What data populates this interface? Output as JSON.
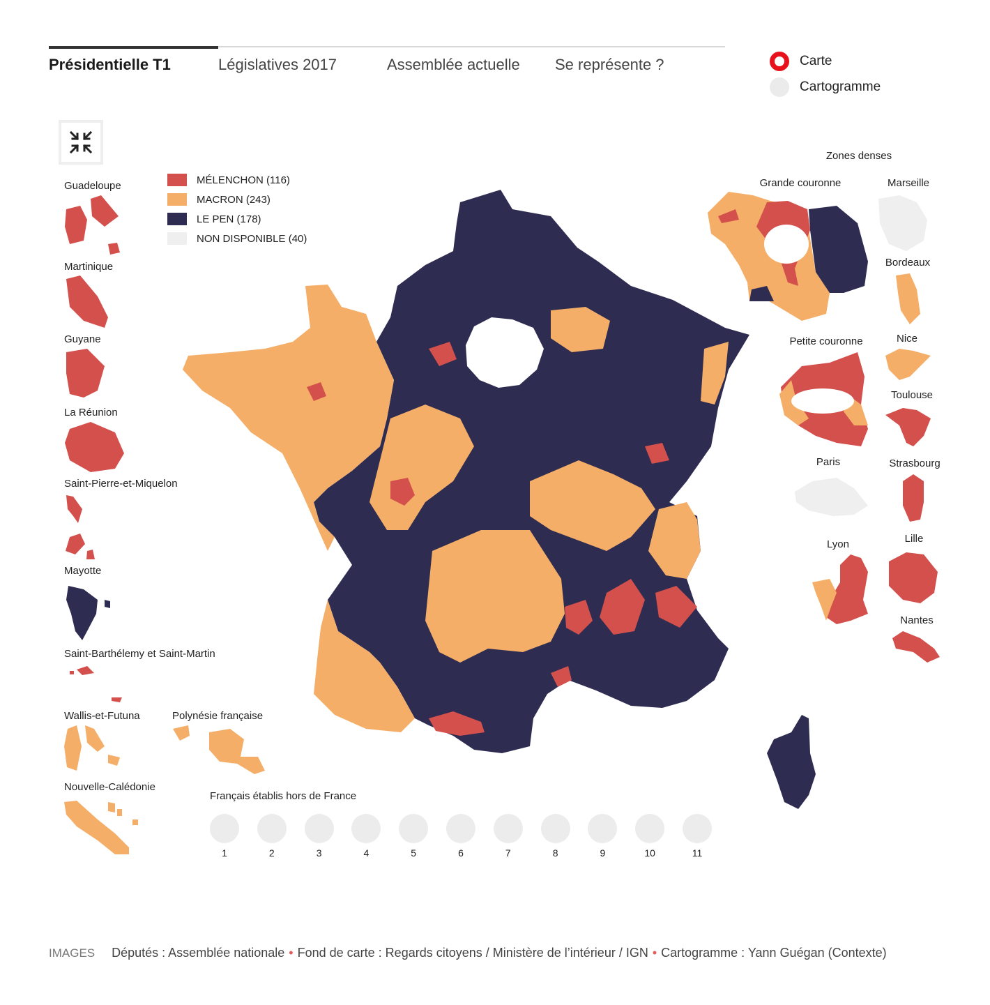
{
  "tabs": [
    {
      "label": "Présidentielle T1",
      "active": true
    },
    {
      "label": "Législatives 2017",
      "active": false
    },
    {
      "label": "Assemblée actuelle",
      "active": false
    },
    {
      "label": "Se représente ?",
      "active": false
    }
  ],
  "modes": [
    {
      "label": "Carte",
      "selected": true
    },
    {
      "label": "Cartogramme",
      "selected": false
    }
  ],
  "legend": [
    {
      "label": "MÉLENCHON (116)",
      "color": "#d4504c"
    },
    {
      "label": "MACRON (243)",
      "color": "#f4ae67"
    },
    {
      "label": "LE PEN (178)",
      "color": "#2f2c52"
    },
    {
      "label": "NON DISPONIBLE (40)",
      "color": "#efefef"
    }
  ],
  "overseas": {
    "guadeloupe": "Guadeloupe",
    "martinique": "Martinique",
    "guyane": "Guyane",
    "reunion": "La Réunion",
    "spm": "Saint-Pierre-et-Miquelon",
    "mayotte": "Mayotte",
    "stbarth": "Saint-Barthélemy et Saint-Martin",
    "wallis": "Wallis-et-Futuna",
    "polynesie": "Polynésie française",
    "caledonie": "Nouvelle-Calédonie"
  },
  "dense_zones": {
    "title": "Zones denses",
    "grande_couronne": "Grande couronne",
    "petite_couronne": "Petite couronne",
    "paris": "Paris",
    "lyon": "Lyon",
    "marseille": "Marseille",
    "bordeaux": "Bordeaux",
    "nice": "Nice",
    "toulouse": "Toulouse",
    "strasbourg": "Strasbourg",
    "lille": "Lille",
    "nantes": "Nantes"
  },
  "abroad": {
    "title": "Français établis hors de France",
    "circonscriptions": [
      "1",
      "2",
      "3",
      "4",
      "5",
      "6",
      "7",
      "8",
      "9",
      "10",
      "11"
    ]
  },
  "footer": {
    "head": "IMAGES",
    "credits": [
      "Députés : Assemblée nationale",
      "Fond de carte : Regards citoyens / Ministère de l’intérieur / IGN",
      "Cartogramme : Yann Guégan (Contexte)"
    ]
  }
}
